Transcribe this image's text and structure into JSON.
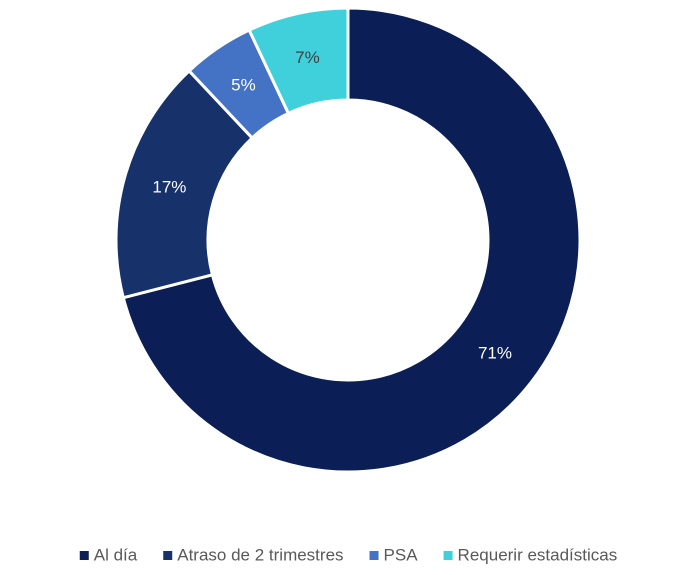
{
  "chart_data": {
    "type": "donut",
    "categories": [
      "Al día",
      "Atraso de 2 trimestres",
      "PSA",
      "Requerir estadísticas"
    ],
    "values": [
      71,
      17,
      5,
      7
    ],
    "value_labels": [
      "71%",
      "17%",
      "5%",
      "7%"
    ],
    "colors": [
      "#0b1f56",
      "#17326b",
      "#4472c4",
      "#3fd0dc"
    ],
    "legend": "bottom"
  }
}
